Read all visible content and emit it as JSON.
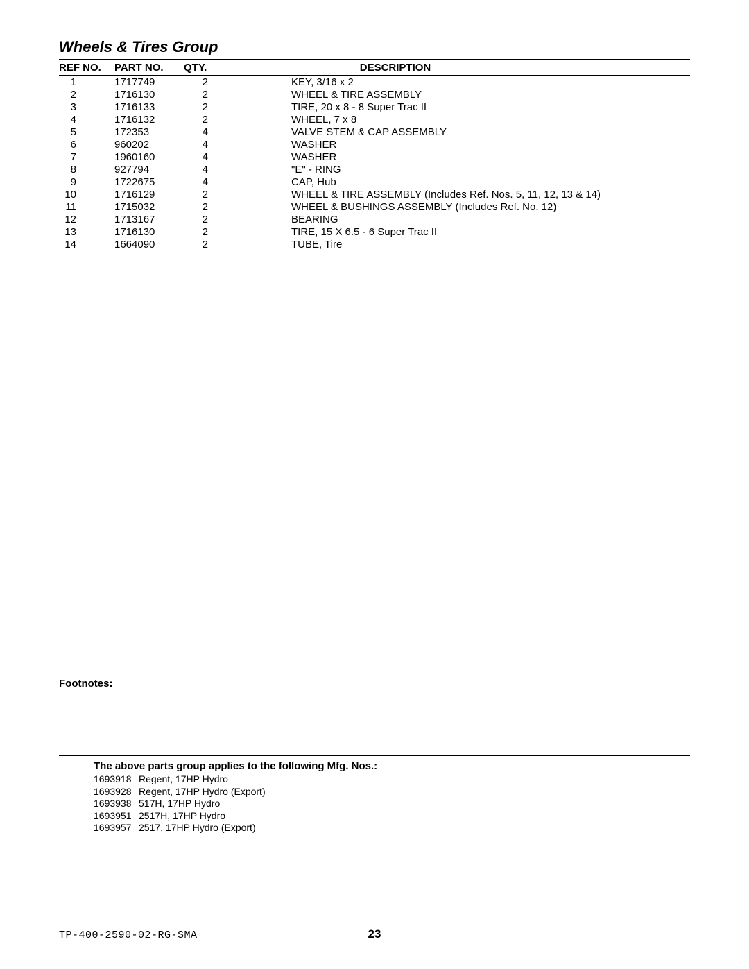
{
  "title": "Wheels & Tires Group",
  "headers": {
    "ref": "Ref No.",
    "part": "Part No.",
    "qty": "Qty.",
    "desc": "Description"
  },
  "rows": [
    {
      "ref": "1",
      "part": "1717749",
      "qty": "2",
      "desc": "KEY, 3/16 x 2"
    },
    {
      "ref": "2",
      "part": "1716130",
      "qty": "2",
      "desc": "WHEEL & TIRE ASSEMBLY"
    },
    {
      "ref": "3",
      "part": "1716133",
      "qty": "2",
      "desc": "TIRE, 20 x  8 - 8 Super Trac II"
    },
    {
      "ref": "4",
      "part": "1716132",
      "qty": "2",
      "desc": "WHEEL, 7 x 8"
    },
    {
      "ref": "5",
      "part": "172353",
      "qty": "4",
      "desc": "VALVE STEM & CAP ASSEMBLY"
    },
    {
      "ref": "6",
      "part": "960202",
      "qty": "4",
      "desc": "WASHER"
    },
    {
      "ref": "7",
      "part": "1960160",
      "qty": "4",
      "desc": "WASHER"
    },
    {
      "ref": "8",
      "part": "927794",
      "qty": "4",
      "desc": "\"E\" - RING"
    },
    {
      "ref": "9",
      "part": "1722675",
      "qty": "4",
      "desc": "CAP, Hub"
    },
    {
      "ref": "10",
      "part": "1716129",
      "qty": "2",
      "desc": "WHEEL & TIRE ASSEMBLY (Includes Ref. Nos. 5, 11, 12, 13 & 14)"
    },
    {
      "ref": "11",
      "part": "1715032",
      "qty": "2",
      "desc": "WHEEL & BUSHINGS ASSEMBLY (Includes Ref. No. 12)"
    },
    {
      "ref": "12",
      "part": "1713167",
      "qty": "2",
      "desc": "BEARING"
    },
    {
      "ref": "13",
      "part": "1716130",
      "qty": "2",
      "desc": "TIRE, 15 X 6.5 - 6 Super Trac II"
    },
    {
      "ref": "14",
      "part": "1664090",
      "qty": "2",
      "desc": "TUBE, Tire"
    }
  ],
  "footnotesLabel": "Footnotes:",
  "mfgHeading": "The above parts group applies to the following Mfg. Nos.:",
  "mfgRows": [
    {
      "no": "1693918",
      "desc": "Regent, 17HP Hydro"
    },
    {
      "no": "1693928",
      "desc": "Regent, 17HP Hydro (Export)"
    },
    {
      "no": "1693938",
      "desc": "517H, 17HP Hydro"
    },
    {
      "no": "1693951",
      "desc": "2517H, 17HP Hydro"
    },
    {
      "no": "1693957",
      "desc": "2517, 17HP Hydro (Export)"
    }
  ],
  "docNo": "TP-400-2590-02-RG-SMA",
  "pageNo": "23",
  "style": {
    "titleFontSize": 22,
    "bodyFontSize": 15,
    "mfgFontSize": 14,
    "ruleColor": "#000000",
    "background": "#ffffff",
    "textColor": "#000000",
    "columns": {
      "refWidth": 80,
      "partWidth": 100,
      "qtyWidth": 80
    }
  }
}
